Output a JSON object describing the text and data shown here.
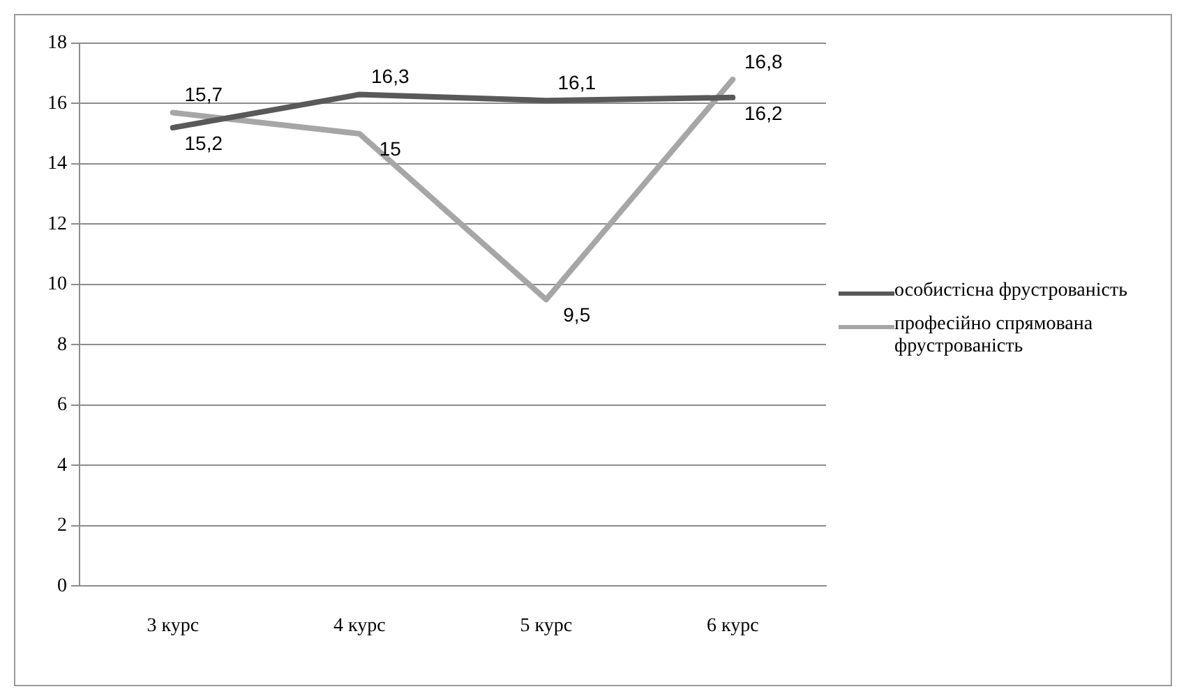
{
  "chart_data": {
    "type": "line",
    "categories": [
      "3 курс",
      "4 курс",
      "5 курс",
      "6 курс"
    ],
    "series": [
      {
        "name": "особистісна фрустрованість",
        "color": "#595959",
        "values": [
          15.2,
          16.3,
          16.1,
          16.2
        ],
        "value_labels": [
          "15,2",
          "16,3",
          "16,1",
          "16,2"
        ]
      },
      {
        "name": "професійно спрямована фрустрованість",
        "color": "#a6a6a6",
        "values": [
          15.7,
          15,
          9.5,
          16.8
        ],
        "value_labels": [
          "15,7",
          "15",
          "9,5",
          "16,8"
        ]
      }
    ],
    "ylim": [
      0,
      18
    ],
    "yticks": [
      0,
      2,
      4,
      6,
      8,
      10,
      12,
      14,
      16,
      18
    ],
    "grid": "y",
    "legend": "right",
    "marker": "none",
    "line_style": "solid"
  }
}
